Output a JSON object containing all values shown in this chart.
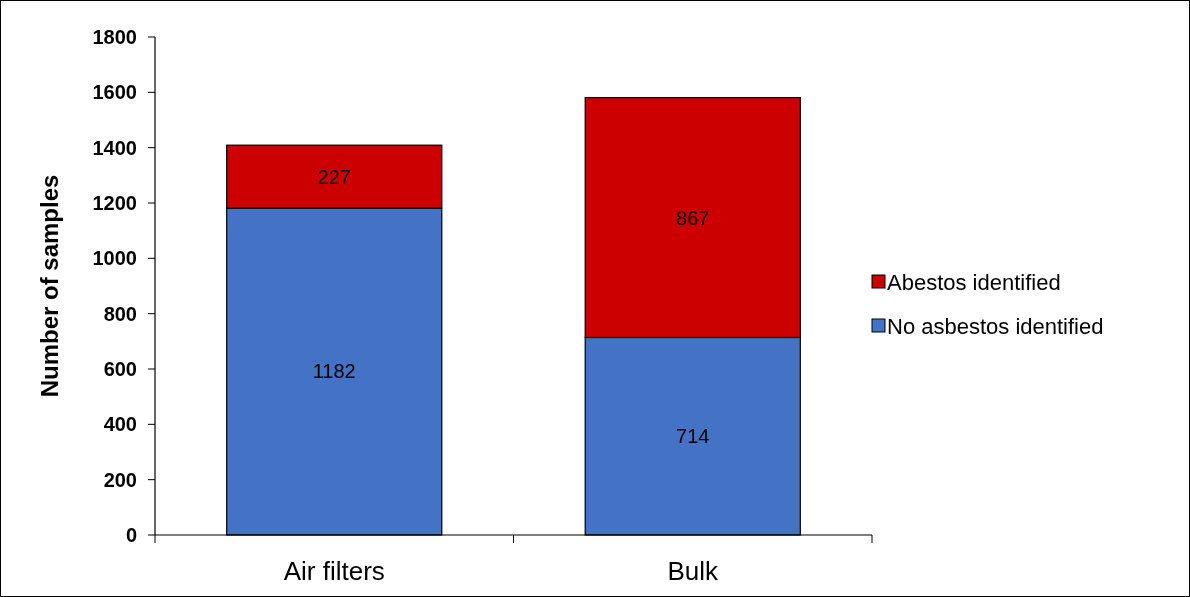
{
  "chart_data": {
    "type": "bar",
    "ylabel": "Number of samples",
    "categories": [
      "Air filters",
      "Bulk"
    ],
    "series": [
      {
        "name": "No asbestos identified",
        "color": "#4472c4",
        "values": [
          1182,
          714
        ]
      },
      {
        "name": "Abestos identified",
        "color": "#cc0000",
        "values": [
          227,
          867
        ]
      }
    ],
    "stacked": true,
    "ylim": [
      0,
      1800
    ],
    "yticks": [
      0,
      200,
      400,
      600,
      800,
      1000,
      1200,
      1400,
      1600,
      1800
    ],
    "data_labels": true,
    "legend": "right",
    "grid": false
  }
}
